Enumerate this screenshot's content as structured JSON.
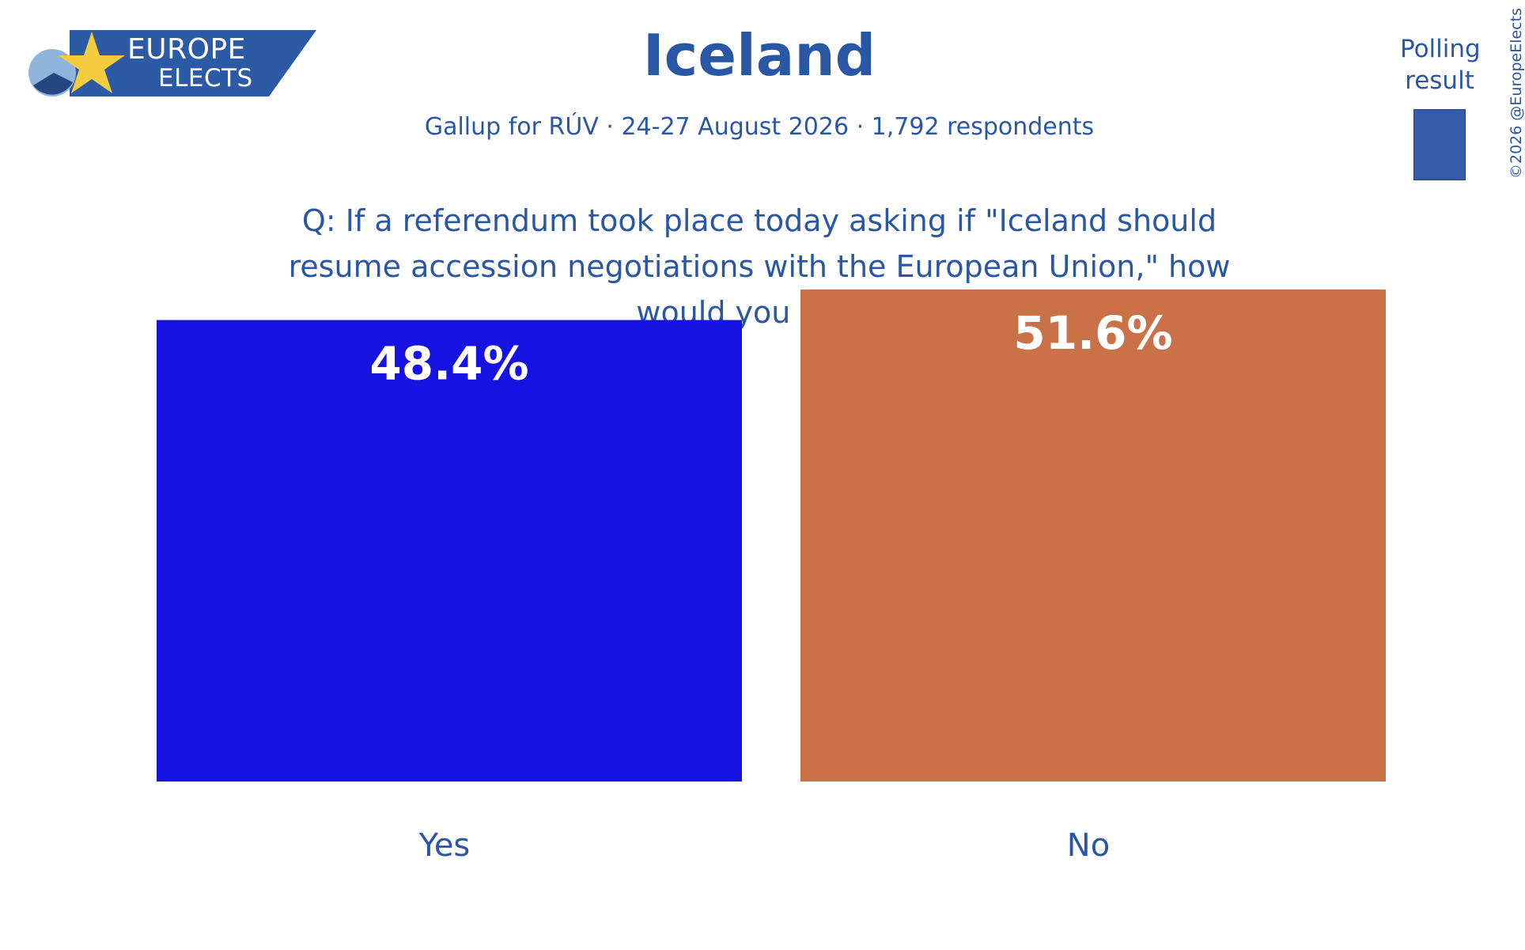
{
  "logo": {
    "line1": "EUROPE",
    "line2": "ELECTS",
    "colors": {
      "banner": "#2d5aa5",
      "star": "#f4cc3f",
      "circle_light": "#8fb5df",
      "circle_dark": "#23477f"
    }
  },
  "header": {
    "title": "Iceland",
    "subtitle": "Gallup for RÚV · 24-27 August 2026 · 1,792 respondents",
    "question": "Q: If a referendum took place today asking if \"Iceland should resume accession negotiations with the European Union,\" how would you vote?"
  },
  "legend": {
    "label": "Polling result",
    "swatch_color": "#345ca8"
  },
  "copyright": "©2026 @EuropeElects",
  "colors": {
    "text": "#2a57a4",
    "background": "#ffffff"
  },
  "chart_data": {
    "type": "bar",
    "categories": [
      "Yes",
      "No"
    ],
    "values": [
      48.4,
      51.6
    ],
    "value_labels": [
      "48.4%",
      "51.6%"
    ],
    "colors": [
      "#1512e2",
      "#cb7148"
    ],
    "ylim": [
      0,
      55
    ],
    "grid": false,
    "legend_position": "top-right"
  }
}
